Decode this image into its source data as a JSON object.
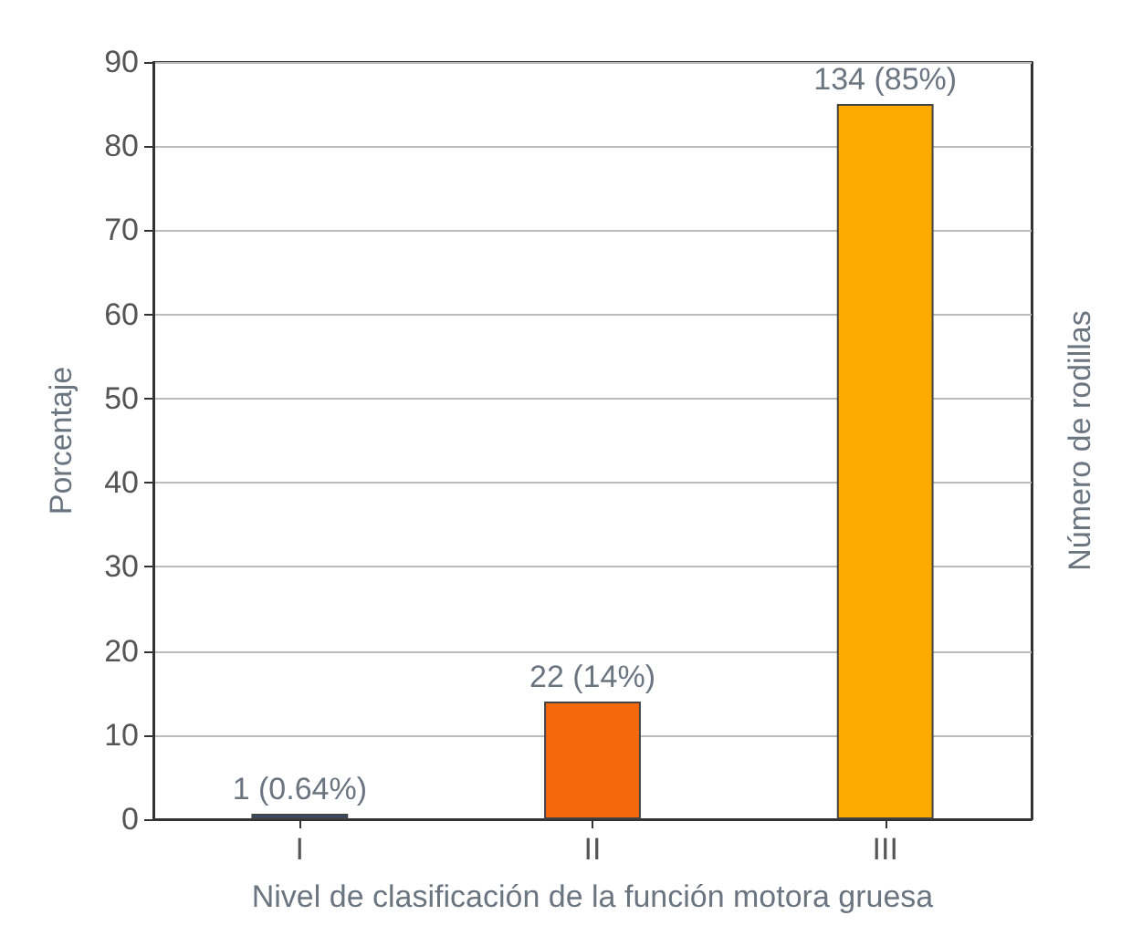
{
  "chart_data": {
    "type": "bar",
    "xlabel": "Nivel de clasificación de la función motora gruesa",
    "ylabel": "Porcentaje",
    "y2label": "Número de rodillas",
    "categories": [
      "I",
      "II",
      "III"
    ],
    "values": [
      0.64,
      14,
      85
    ],
    "colors": [
      "#3a4a6b",
      "#f5680c",
      "#ffaa00"
    ],
    "value_labels": [
      "1 (0.64%)",
      "22 (14%)",
      "134 (85%)"
    ],
    "ylim": [
      0,
      90
    ],
    "yticks": [
      0,
      10,
      20,
      30,
      40,
      50,
      60,
      70,
      80,
      90
    ],
    "grid": "y"
  }
}
